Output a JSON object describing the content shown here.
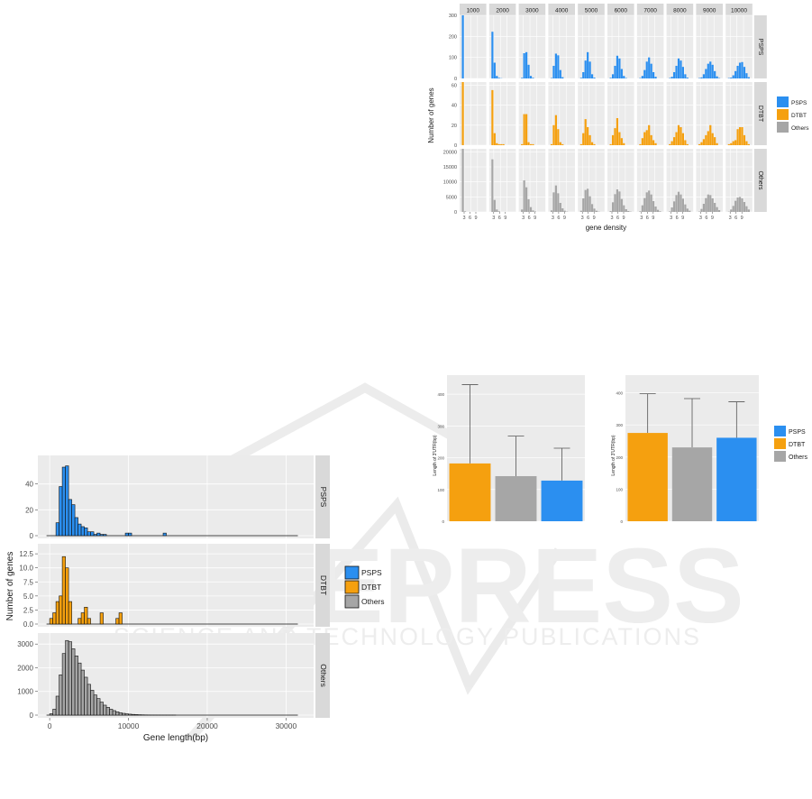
{
  "colors": {
    "PSPS": "#2b8ff0",
    "DTBT": "#f5a00f",
    "Others": "#a6a6a6",
    "panel": "#ebebeb",
    "strip": "#d9d9d9"
  },
  "watermark": {
    "text": "SCITEPRESS",
    "subtext": "SCIENCE AND TECHNOLOGY PUBLICATIONS"
  },
  "fig_density": {
    "chart_data": {
      "type": "bar",
      "column_strips": [
        "1000",
        "2000",
        "3000",
        "4000",
        "5000",
        "6000",
        "7000",
        "8000",
        "9000",
        "10000"
      ],
      "row_strips": [
        "PSPS",
        "DTBT",
        "Others"
      ],
      "xlabel": "gene density",
      "ylabel": "Number of genes",
      "x_tick_labels": [
        "3",
        "6",
        "9"
      ],
      "y_ticks": {
        "PSPS": [
          "300",
          "200",
          "100",
          "0"
        ],
        "DTBT": [
          "60",
          "40",
          "20",
          "0"
        ],
        "Others": [
          "20000",
          "15000",
          "10000",
          "5000",
          "0"
        ]
      },
      "ylim": {
        "PSPS": [
          0,
          300
        ],
        "DTBT": [
          0,
          63
        ],
        "Others": [
          0,
          21000
        ]
      },
      "series": [
        {
          "row": "PSPS",
          "columns": [
            [
              300,
              0,
              0,
              0,
              0,
              0,
              0,
              0,
              0,
              0
            ],
            [
              222,
              75,
              12,
              3,
              1,
              0,
              0,
              0,
              0,
              0
            ],
            [
              3,
              120,
              125,
              65,
              12,
              3,
              0,
              0,
              0,
              0
            ],
            [
              2,
              60,
              118,
              110,
              40,
              6,
              0,
              0,
              0,
              0
            ],
            [
              3,
              30,
              85,
              125,
              80,
              20,
              4,
              0,
              0,
              0
            ],
            [
              3,
              20,
              60,
              108,
              95,
              45,
              12,
              2,
              0,
              0
            ],
            [
              2,
              12,
              40,
              80,
              100,
              70,
              30,
              8,
              0,
              0
            ],
            [
              2,
              8,
              30,
              60,
              95,
              85,
              55,
              20,
              4,
              0
            ],
            [
              2,
              5,
              20,
              45,
              70,
              80,
              65,
              35,
              10,
              2
            ],
            [
              2,
              4,
              15,
              35,
              60,
              75,
              78,
              55,
              25,
              6
            ]
          ]
        },
        {
          "row": "DTBT",
          "columns": [
            [
              63,
              0,
              0,
              0,
              0,
              0,
              0,
              0,
              0,
              0
            ],
            [
              55,
              12,
              2,
              1,
              1,
              1,
              0,
              0,
              0,
              0
            ],
            [
              1,
              31,
              31,
              3,
              1,
              1,
              0,
              0,
              0,
              0
            ],
            [
              1,
              20,
              30,
              16,
              3,
              1,
              0,
              0,
              0,
              0
            ],
            [
              1,
              12,
              26,
              18,
              10,
              3,
              1,
              0,
              0,
              0
            ],
            [
              1,
              10,
              17,
              27,
              13,
              7,
              2,
              0,
              0,
              0
            ],
            [
              1,
              7,
              13,
              15,
              20,
              10,
              5,
              2,
              0,
              0
            ],
            [
              1,
              4,
              8,
              13,
              20,
              18,
              12,
              5,
              1,
              0
            ],
            [
              1,
              3,
              6,
              10,
              14,
              20,
              12,
              8,
              2,
              0
            ],
            [
              1,
              2,
              4,
              5,
              16,
              18,
              18,
              10,
              4,
              1
            ]
          ]
        },
        {
          "row": "Others",
          "columns": [
            [
              21000,
              200,
              0,
              0,
              0,
              0,
              0,
              0,
              0,
              0
            ],
            [
              17500,
              4000,
              800,
              200,
              0,
              0,
              0,
              0,
              0,
              0
            ],
            [
              800,
              10500,
              8200,
              4200,
              1600,
              500,
              150,
              0,
              0,
              0
            ],
            [
              500,
              6500,
              8800,
              6200,
              3000,
              1200,
              400,
              100,
              0,
              0
            ],
            [
              400,
              4500,
              7300,
              7700,
              5200,
              2600,
              1100,
              400,
              100,
              0
            ],
            [
              300,
              3200,
              5900,
              7500,
              6800,
              4300,
              2200,
              900,
              300,
              100
            ],
            [
              200,
              2200,
              4600,
              6500,
              7100,
              5800,
              3600,
              1800,
              700,
              200
            ],
            [
              150,
              1500,
              3500,
              5600,
              6700,
              5800,
              4400,
              2500,
              1100,
              400
            ],
            [
              120,
              1000,
              2700,
              4600,
              5800,
              5600,
              4500,
              3000,
              1600,
              600
            ],
            [
              100,
              800,
              2000,
              3700,
              4800,
              5000,
              4500,
              3300,
              1900,
              800
            ]
          ]
        }
      ],
      "legend": [
        "PSPS",
        "DTBT",
        "Others"
      ],
      "legend_position": "right"
    }
  },
  "fig_length": {
    "chart_data": {
      "type": "bar",
      "row_strips": [
        "PSPS",
        "DTBT",
        "Others"
      ],
      "xlabel": "Gene length(bp)",
      "ylabel": "Number of genes",
      "x_ticks": [
        "0",
        "10000",
        "20000",
        "30000"
      ],
      "xlim": [
        -1500,
        33500
      ],
      "bin_width": 400,
      "y_ticks": {
        "PSPS": [
          "40",
          "20",
          "0"
        ],
        "DTBT": [
          "12.5",
          "10.0",
          "7.5",
          "5.0",
          "2.5",
          "0.0"
        ],
        "Others": [
          "3000",
          "2000",
          "1000",
          "0"
        ]
      },
      "ylim": {
        "PSPS": [
          0,
          60
        ],
        "DTBT": [
          0,
          13.8
        ],
        "Others": [
          0,
          3350
        ]
      },
      "series": [
        {
          "row": "PSPS",
          "bin_starts": [
            800,
            1200,
            1600,
            2000,
            2400,
            2800,
            3200,
            3600,
            4000,
            4400,
            4800,
            5200,
            5600,
            6000,
            6400,
            6800,
            9600,
            10000,
            14400
          ],
          "values": [
            10,
            38,
            53,
            54,
            28,
            24,
            14,
            9,
            7,
            6,
            3,
            3,
            1,
            2,
            1,
            1,
            2,
            2,
            2
          ]
        },
        {
          "row": "DTBT",
          "bin_starts": [
            0,
            400,
            800,
            1200,
            1600,
            2000,
            2400,
            3600,
            4000,
            4400,
            4800,
            6400,
            8400,
            8800
          ],
          "values": [
            1,
            2,
            4,
            5,
            12,
            10,
            4,
            1,
            2,
            3,
            1,
            2,
            1,
            2
          ]
        },
        {
          "row": "Others",
          "bin_starts": [
            0,
            400,
            800,
            1200,
            1600,
            2000,
            2400,
            2800,
            3200,
            3600,
            4000,
            4400,
            4800,
            5200,
            5600,
            6000,
            6400,
            6800,
            7200,
            7600,
            8000,
            8400,
            8800,
            9200,
            9600,
            10000,
            10400,
            10800,
            11200,
            11600,
            12000,
            12400,
            12800,
            13200,
            13600,
            14000,
            14400,
            14800,
            15200,
            15600
          ],
          "values": [
            60,
            250,
            800,
            1700,
            2600,
            3150,
            3100,
            2800,
            2500,
            2200,
            1900,
            1600,
            1300,
            1050,
            850,
            700,
            550,
            420,
            330,
            250,
            190,
            140,
            100,
            75,
            55,
            40,
            30,
            22,
            16,
            12,
            9,
            7,
            5,
            4,
            3,
            2,
            2,
            1,
            1,
            1
          ]
        }
      ],
      "legend": [
        "PSPS",
        "DTBT",
        "Others"
      ],
      "legend_position": "right"
    }
  },
  "fig_utr_left": {
    "chart_data": {
      "type": "bar",
      "ylabel": "Length of 3'UTR(bp)",
      "y_ticks": [
        "400",
        "300",
        "200",
        "100",
        "0"
      ],
      "ylim": [
        0,
        460
      ],
      "categories": [
        "DTBT",
        "Others",
        "PSPS"
      ],
      "values": [
        182,
        142,
        128
      ],
      "error_upper": [
        430,
        268,
        230
      ]
    }
  },
  "fig_utr_right": {
    "chart_data": {
      "type": "bar",
      "ylabel": "Length of 3'UTR(bp)",
      "y_ticks": [
        "400",
        "300",
        "200",
        "100",
        "0"
      ],
      "ylim": [
        0,
        455
      ],
      "categories": [
        "DTBT",
        "Others",
        "PSPS"
      ],
      "values": [
        275,
        230,
        260
      ],
      "error_upper": [
        397,
        382,
        372
      ],
      "legend": [
        "PSPS",
        "DTBT",
        "Others"
      ],
      "legend_position": "right"
    }
  }
}
